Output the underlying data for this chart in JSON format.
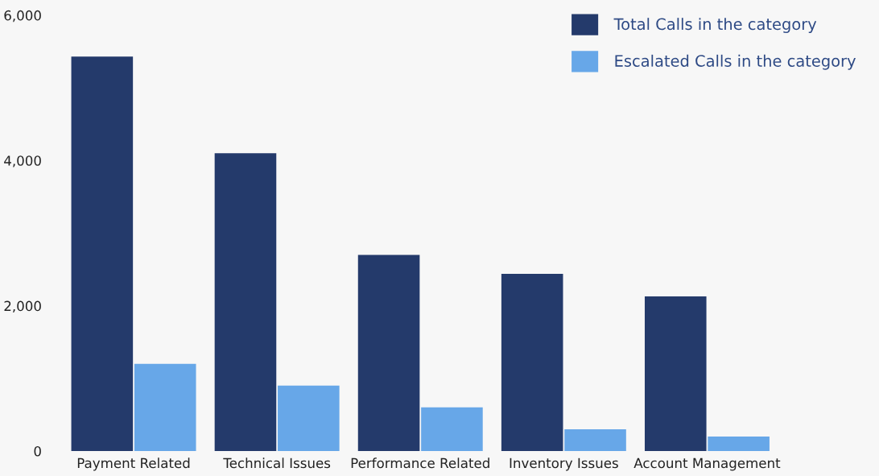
{
  "chart_data": {
    "type": "bar",
    "categories": [
      "Payment Related",
      "Technical Issues",
      "Performance Related",
      "Inventory Issues",
      "Account Management"
    ],
    "series": [
      {
        "name": "Total Calls in the category",
        "color": "#243a6b",
        "values": [
          5430,
          4100,
          2700,
          2440,
          2130
        ]
      },
      {
        "name": "Escalated Calls in the category",
        "color": "#67a7e8",
        "values": [
          1200,
          900,
          600,
          300,
          200
        ]
      }
    ],
    "ylim": [
      0,
      6000
    ],
    "yticks": [
      0,
      {
        "value": 2000,
        "label": "2,000"
      },
      {
        "value": 4000,
        "label": "4,000"
      },
      {
        "value": 6000,
        "label": "6,000"
      }
    ],
    "grid": false,
    "legend": "top right"
  }
}
